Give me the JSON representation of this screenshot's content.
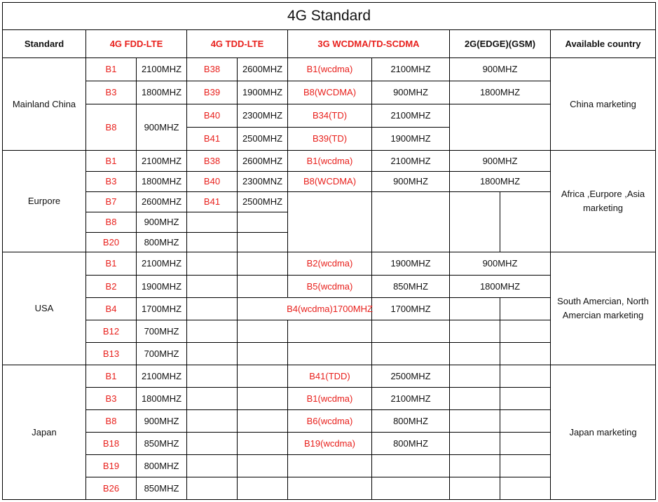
{
  "title": "4G Standard",
  "headers": [
    "Standard",
    "4G FDD-LTE",
    "4G TDD-LTE",
    "3G WCDMA/TD-SCDMA",
    "2G(EDGE)(GSM)",
    "Available country"
  ],
  "colors": {
    "band_text": "#e8201c",
    "text": "#111111",
    "border": "#000000"
  },
  "china": {
    "name": "Mainland China",
    "country": "China marketing",
    "fdd": [
      [
        "B1",
        "2100MHZ"
      ],
      [
        "B3",
        "1800MHZ"
      ],
      [
        "B8",
        "900MHZ"
      ]
    ],
    "tdd": [
      [
        "B38",
        "2600MHZ"
      ],
      [
        "B39",
        "1900MHZ"
      ],
      [
        "B40",
        "2300MHZ"
      ],
      [
        "B41",
        "2500MHZ"
      ]
    ],
    "wcdma": [
      [
        "B1(wcdma)",
        "2100MHZ"
      ],
      [
        "B8(WCDMA)",
        "900MHZ"
      ],
      [
        "B34(TD)",
        "2100MHZ"
      ],
      [
        "B39(TD)",
        "1900MHZ"
      ]
    ],
    "gsm": [
      "900MHZ",
      "1800MHZ"
    ]
  },
  "europe": {
    "name": "Eurpore",
    "country": "Africa ,Eurpore ,Asia marketing",
    "fdd": [
      [
        "B1",
        "2100MHZ"
      ],
      [
        "B3",
        "1800MHZ"
      ],
      [
        "B7",
        "2600MHZ"
      ],
      [
        "B8",
        "900MHZ"
      ],
      [
        "B20",
        "800MHZ"
      ]
    ],
    "tdd": [
      [
        "B38",
        "2600MHZ"
      ],
      [
        "B40",
        "2300MNZ"
      ],
      [
        "B41",
        "2500MHZ"
      ]
    ],
    "wcdma": [
      [
        "B1(wcdma)",
        "2100MHZ"
      ],
      [
        "B8(WCDMA)",
        "900MHZ"
      ]
    ],
    "gsm": [
      "900MHZ",
      "1800MHZ"
    ]
  },
  "usa": {
    "name": "USA",
    "country": "South Amercian, North Amercian marketing",
    "fdd": [
      [
        "B1",
        "2100MHZ"
      ],
      [
        "B2",
        "1900MHZ"
      ],
      [
        "B4",
        "1700MHZ"
      ],
      [
        "B12",
        "700MHZ"
      ],
      [
        "B13",
        "700MHZ"
      ]
    ],
    "wcdma": [
      [
        "B2(wcdma)",
        "1900MHZ"
      ],
      [
        "B5(wcdma)",
        "850MHZ"
      ],
      [
        "B4(wcdma)1700MHZ",
        "1700MHZ"
      ]
    ],
    "gsm": [
      "900MHZ",
      "1800MHZ"
    ]
  },
  "japan": {
    "name": "Japan",
    "country": "Japan marketing",
    "fdd": [
      [
        "B1",
        "2100MHZ"
      ],
      [
        "B3",
        "1800MHZ"
      ],
      [
        "B8",
        "900MHZ"
      ],
      [
        "B18",
        "850MHZ"
      ],
      [
        "B19",
        "800MHZ"
      ],
      [
        "B26",
        "850MHZ"
      ]
    ],
    "wcdma": [
      [
        "B41(TDD)",
        "2500MHZ"
      ],
      [
        "B1(wcdma)",
        "2100MHZ"
      ],
      [
        "B6(wcdma)",
        "800MHZ"
      ],
      [
        "B19(wcdma)",
        "800MHZ"
      ]
    ]
  }
}
